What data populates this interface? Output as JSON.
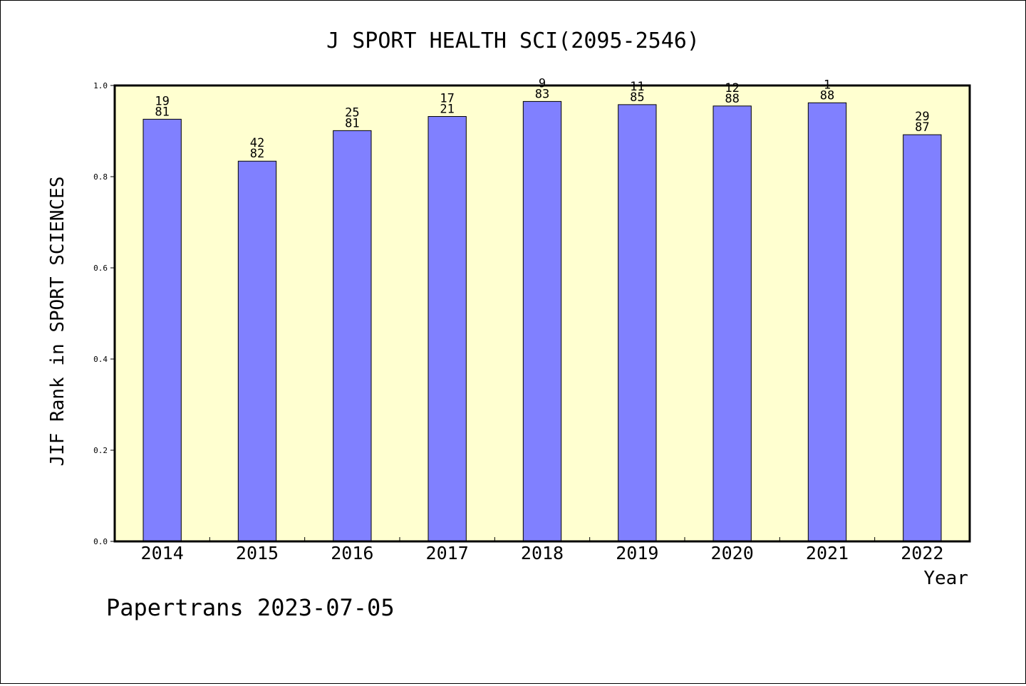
{
  "chart_data": {
    "type": "bar",
    "title": "J SPORT HEALTH SCI(2095-2546)",
    "xlabel": "Year",
    "ylabel": "JIF Rank in SPORT SCIENCES",
    "ylim": [
      0,
      1
    ],
    "yticks": [
      "0.0",
      "0.2",
      "0.4",
      "0.6",
      "0.8",
      "1.0"
    ],
    "categories": [
      "2014",
      "2015",
      "2016",
      "2017",
      "2018",
      "2019",
      "2020",
      "2021",
      "2022"
    ],
    "values": [
      0.926,
      0.834,
      0.901,
      0.932,
      0.965,
      0.958,
      0.955,
      0.962,
      0.892
    ],
    "annotations": [
      {
        "top": "19",
        "bottom": "81"
      },
      {
        "top": "42",
        "bottom": "82"
      },
      {
        "top": "25",
        "bottom": "81"
      },
      {
        "top": "17",
        "bottom": "21"
      },
      {
        "top": "9",
        "bottom": "83"
      },
      {
        "top": "11",
        "bottom": "85"
      },
      {
        "top": "12",
        "bottom": "88"
      },
      {
        "top": "1",
        "bottom": "88"
      },
      {
        "top": "29",
        "bottom": "87"
      }
    ],
    "grid": false,
    "colors": {
      "plot_background": "#ffffd0",
      "bar_fill": "#8080ff",
      "bar_stroke": "#000000"
    }
  },
  "footer": "Papertrans 2023-07-05"
}
